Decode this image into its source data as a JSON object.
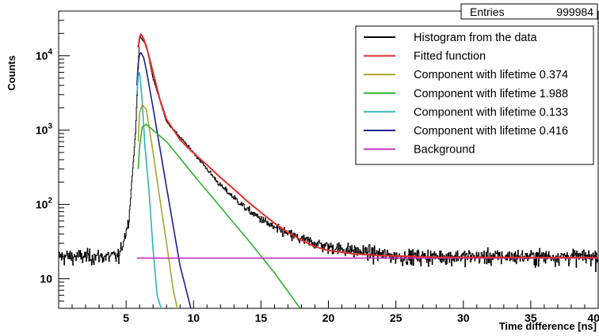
{
  "chart_data": {
    "type": "line",
    "ylog": true,
    "xlim": [
      0,
      40
    ],
    "ylim": [
      4,
      40000
    ],
    "xlabel": "Time difference [ns]",
    "ylabel": "Counts",
    "x_ticks": [
      5,
      10,
      15,
      20,
      25,
      30,
      35,
      40
    ],
    "x_tick_labels": [
      "5",
      "10",
      "15",
      "20",
      "25",
      "30",
      "35",
      "40"
    ],
    "y_ticks": [
      10,
      100,
      1000,
      10000
    ],
    "y_tick_labels": [
      {
        "base": "10",
        "exp": ""
      },
      {
        "base": "10",
        "exp": "2"
      },
      {
        "base": "10",
        "exp": "3"
      },
      {
        "base": "10",
        "exp": "4"
      }
    ],
    "legend_position": "top-right",
    "stats_box": {
      "label": "Entries",
      "value": "999984"
    },
    "series": [
      {
        "name": "Histogram from the data",
        "color": "#000000",
        "style": "histogram",
        "description_points": {
          "x": [
            0,
            4.5,
            5.2,
            5.7,
            6.0,
            6.5,
            7,
            8,
            10,
            12,
            14,
            16,
            18,
            20,
            25,
            30,
            35,
            40
          ],
          "y": [
            20,
            20,
            60,
            900,
            18500,
            14000,
            5000,
            1300,
            500,
            180,
            85,
            48,
            34,
            27,
            20,
            20,
            20,
            20
          ]
        }
      },
      {
        "name": "Fitted function",
        "color": "#e03030",
        "x": [
          5.9,
          6.0,
          6.1,
          6.3,
          6.6,
          7.0,
          7.5,
          8,
          9,
          10,
          11,
          12,
          13,
          14,
          15,
          16,
          17,
          18,
          19,
          20,
          22,
          24,
          26,
          28,
          30,
          35,
          40
        ],
        "y": [
          13000,
          17500,
          19500,
          17000,
          11500,
          6000,
          2600,
          1400,
          740,
          490,
          340,
          230,
          160,
          110,
          78,
          56,
          42,
          33,
          27,
          24,
          21.5,
          20.5,
          20,
          19.5,
          19.4,
          19.3,
          19.3
        ]
      },
      {
        "name": "Component with lifetime 0.374",
        "color": "#a5a530",
        "x": [
          5.9,
          6.0,
          6.2,
          6.5,
          7,
          7.5,
          8,
          8.5,
          8.8
        ],
        "y": [
          700,
          1700,
          2200,
          1900,
          500,
          120,
          30,
          7,
          3.8
        ]
      },
      {
        "name": "Component with lifetime 1.988",
        "color": "#30b030",
        "x": [
          5.9,
          6.0,
          6.2,
          6.5,
          7,
          8,
          10,
          12,
          14,
          16,
          17.9
        ],
        "y": [
          300,
          600,
          1100,
          1200,
          1000,
          700,
          250,
          92,
          34,
          12,
          3.8
        ]
      },
      {
        "name": "Component with lifetime 0.133",
        "color": "#30b5b5",
        "x": [
          5.8,
          5.9,
          6.0,
          6.2,
          6.4,
          6.7,
          7.0,
          7.3,
          7.6
        ],
        "y": [
          3000,
          5400,
          6000,
          2400,
          600,
          150,
          25,
          6,
          3.8
        ]
      },
      {
        "name": "Component with lifetime 0.416",
        "color": "#202090",
        "x": [
          5.8,
          5.9,
          6.0,
          6.1,
          6.3,
          6.5,
          7,
          8,
          9,
          9.8
        ],
        "y": [
          4000,
          8000,
          10500,
          11000,
          9500,
          6500,
          2000,
          170,
          15,
          3.8
        ]
      },
      {
        "name": "Background",
        "color": "#c030c0",
        "x": [
          5.8,
          40
        ],
        "y": [
          19,
          19
        ]
      }
    ]
  }
}
